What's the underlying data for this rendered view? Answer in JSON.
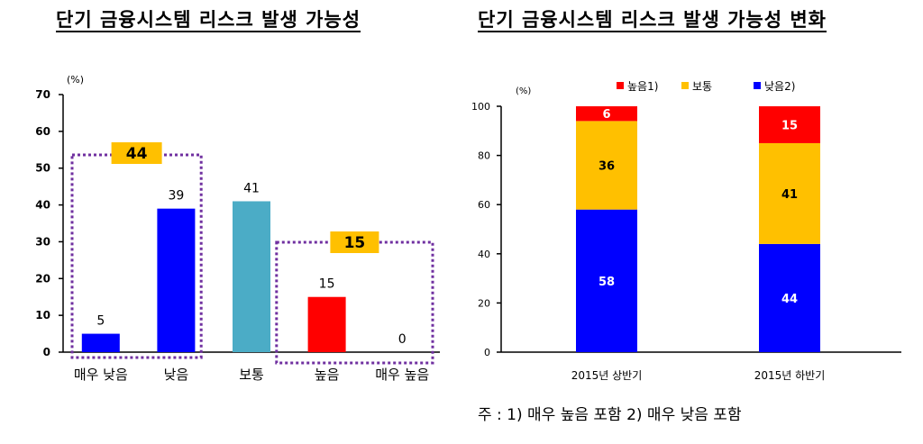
{
  "charts": {
    "left": {
      "title": "단기 금융시스템 리스크 발생 가능성",
      "unit": "(%)",
      "group_labels": [
        "44",
        "15"
      ]
    },
    "right": {
      "title": "단기 금융시스템 리스크 발생 가능성 변화",
      "unit": "(%)"
    }
  },
  "footnote": "주 : 1) 매우 높음 포함   2) 매우 낮음 포함",
  "colors": {
    "dark_blue": "#0000ff",
    "teal": "#4bacc6",
    "red": "#ff0000",
    "gold": "#ffc000",
    "group_box": "#7030a0"
  },
  "chart_data": [
    {
      "type": "bar",
      "title": "단기 금융시스템 리스크 발생 가능성",
      "ylabel": "(%)",
      "categories": [
        "매우 낮음",
        "낮음",
        "보통",
        "높음",
        "매우 높음"
      ],
      "values": [
        5,
        39,
        41,
        15,
        0
      ],
      "colors": [
        "#0000ff",
        "#0000ff",
        "#4bacc6",
        "#ff0000",
        "#ff0000"
      ],
      "ylim": [
        0,
        70
      ],
      "yticks": [
        0,
        10,
        20,
        30,
        40,
        50,
        60,
        70
      ],
      "annotations": [
        {
          "text": "44",
          "spans": [
            "매우 낮음",
            "낮음"
          ]
        },
        {
          "text": "15",
          "spans": [
            "높음",
            "매우 높음"
          ]
        }
      ],
      "grid": false
    },
    {
      "type": "bar",
      "stacked": true,
      "title": "단기 금융시스템 리스크 발생 가능성 변화",
      "ylabel": "(%)",
      "categories": [
        "2015년 상반기",
        "2015년 하반기"
      ],
      "series": [
        {
          "name": "낮음2)",
          "values": [
            58,
            44
          ],
          "color": "#0000ff"
        },
        {
          "name": "보통",
          "values": [
            36,
            41
          ],
          "color": "#ffc000"
        },
        {
          "name": "높음1)",
          "values": [
            6,
            15
          ],
          "color": "#ff0000"
        }
      ],
      "legend_order": [
        "높음1)",
        "보통",
        "낮음2)"
      ],
      "ylim": [
        0,
        100
      ],
      "yticks": [
        0,
        20,
        40,
        60,
        80,
        100
      ],
      "legend_position": "top",
      "grid": false
    }
  ]
}
